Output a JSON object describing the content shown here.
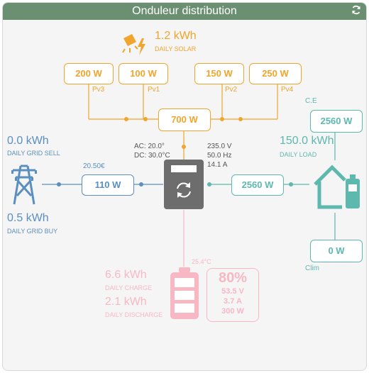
{
  "header": {
    "title": "Onduleur distribution"
  },
  "solar": {
    "total_energy": "1.2 kWh",
    "total_label": "DAILY SOLAR",
    "pv3": {
      "power": "200 W",
      "label": "Pv3"
    },
    "pv1": {
      "power": "100 W",
      "label": "Pv1"
    },
    "pv2": {
      "power": "150 W",
      "label": "Pv2"
    },
    "pv4": {
      "power": "250 W",
      "label": "Pv4"
    },
    "total_power": "700 W"
  },
  "grid": {
    "sell_energy": "0.0 kWh",
    "sell_label": "DAILY GRID SELL",
    "buy_energy": "0.5 kWh",
    "buy_label": "DAILY GRID BUY",
    "price": "20.50€",
    "power": "110 W"
  },
  "inverter": {
    "ac_temp": "AC: 20.0°",
    "dc_temp": "DC: 30.0°C",
    "voltage": "235.0 V",
    "frequency": "50.0 Hz",
    "current": "14.1 A"
  },
  "load": {
    "daily_energy": "150.0 kWh",
    "daily_label": "DAILY LOAD",
    "power": "2560 W",
    "ce_label": "C.E",
    "ce_power": "2560 W",
    "clim_label": "Clim",
    "clim_power": "0 W"
  },
  "battery": {
    "temperature": "25.4°C",
    "charge_energy": "6.6 kWh",
    "charge_label": "DAILY CHARGE",
    "discharge_energy": "2.1 kWh",
    "discharge_label": "DAILY DISCHARGE",
    "soc": "80%",
    "voltage": "53.5 V",
    "current": "3.7 A",
    "power": "300 W"
  },
  "colors": {
    "solar": "#f0a52c",
    "grid": "#5b8fc0",
    "load": "#5db8ae",
    "battery": "#f7b8c4",
    "inverter": "#6d6d6d",
    "header": "#6b8f71"
  }
}
